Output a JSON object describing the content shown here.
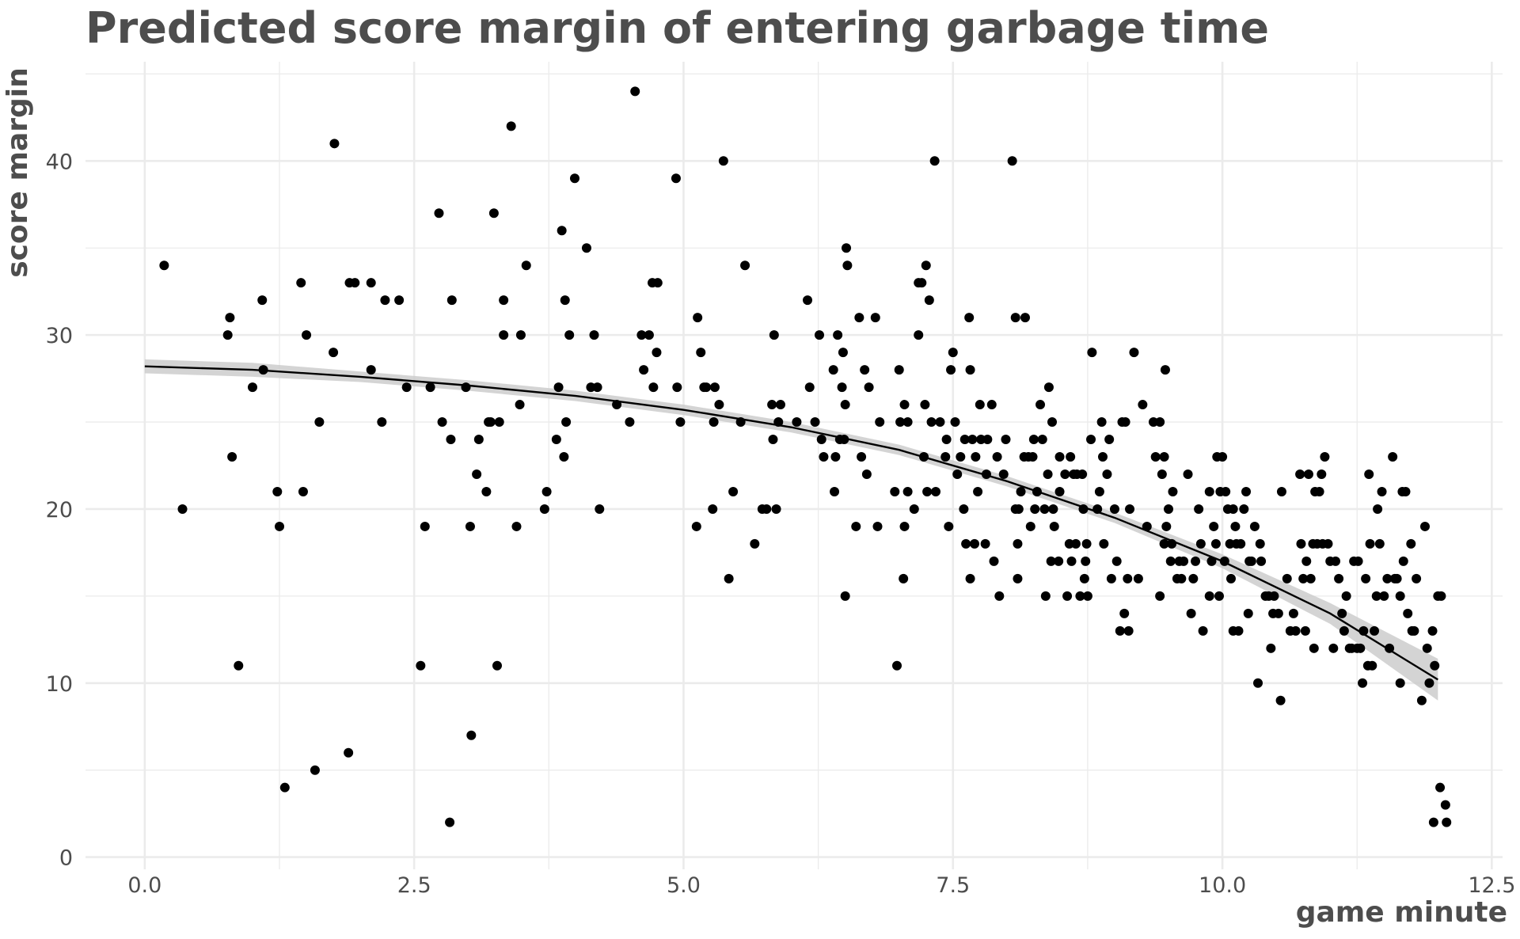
{
  "chart_data": {
    "type": "scatter",
    "title": "Predicted score margin of entering garbage time",
    "xlabel": "game minute",
    "ylabel": "score margin",
    "xlim": [
      -0.55,
      12.6
    ],
    "ylim": [
      -0.7,
      45.7
    ],
    "xticks": [
      0,
      2.5,
      5,
      7.5,
      10,
      12.5
    ],
    "xtick_labels": [
      "0.0",
      "2.5",
      "5.0",
      "7.5",
      "10.0",
      "12.5"
    ],
    "yticks": [
      0,
      10,
      20,
      30,
      40
    ],
    "ytick_labels": [
      "0",
      "10",
      "20",
      "30",
      "40"
    ],
    "grid": true,
    "legend": "none",
    "colors": {
      "points": "#000000",
      "fit_line": "#000000",
      "ribbon": "#cccccc",
      "grid": "#ebebeb"
    },
    "points": [
      [
        0.18,
        34
      ],
      [
        0.35,
        20
      ],
      [
        0.77,
        30
      ],
      [
        0.79,
        31
      ],
      [
        0.81,
        23
      ],
      [
        0.87,
        11
      ],
      [
        1.0,
        27
      ],
      [
        1.09,
        32
      ],
      [
        1.1,
        28
      ],
      [
        1.23,
        21
      ],
      [
        1.25,
        19
      ],
      [
        1.3,
        4
      ],
      [
        1.45,
        33
      ],
      [
        1.47,
        21
      ],
      [
        1.5,
        30
      ],
      [
        1.58,
        5
      ],
      [
        1.62,
        25
      ],
      [
        1.75,
        29
      ],
      [
        1.76,
        41
      ],
      [
        1.89,
        6
      ],
      [
        1.9,
        33
      ],
      [
        1.95,
        33
      ],
      [
        2.1,
        33
      ],
      [
        2.1,
        28
      ],
      [
        2.2,
        25
      ],
      [
        2.23,
        32
      ],
      [
        2.36,
        32
      ],
      [
        2.43,
        27
      ],
      [
        2.56,
        11
      ],
      [
        2.6,
        19
      ],
      [
        2.65,
        27
      ],
      [
        2.73,
        37
      ],
      [
        2.76,
        25
      ],
      [
        2.83,
        2
      ],
      [
        2.84,
        24
      ],
      [
        2.85,
        32
      ],
      [
        2.98,
        27
      ],
      [
        3.02,
        19
      ],
      [
        3.03,
        7
      ],
      [
        3.08,
        22
      ],
      [
        3.1,
        24
      ],
      [
        3.17,
        21
      ],
      [
        3.19,
        25
      ],
      [
        3.21,
        25
      ],
      [
        3.24,
        37
      ],
      [
        3.27,
        11
      ],
      [
        3.29,
        25
      ],
      [
        3.33,
        30
      ],
      [
        3.33,
        32
      ],
      [
        3.4,
        42
      ],
      [
        3.45,
        19
      ],
      [
        3.48,
        26
      ],
      [
        3.49,
        30
      ],
      [
        3.54,
        34
      ],
      [
        3.71,
        20
      ],
      [
        3.73,
        21
      ],
      [
        3.82,
        24
      ],
      [
        3.84,
        27
      ],
      [
        3.87,
        36
      ],
      [
        3.89,
        23
      ],
      [
        3.9,
        32
      ],
      [
        3.91,
        25
      ],
      [
        3.94,
        30
      ],
      [
        3.99,
        39
      ],
      [
        4.1,
        35
      ],
      [
        4.14,
        27
      ],
      [
        4.17,
        30
      ],
      [
        4.2,
        27
      ],
      [
        4.22,
        20
      ],
      [
        4.38,
        26
      ],
      [
        4.5,
        25
      ],
      [
        4.55,
        44
      ],
      [
        4.61,
        30
      ],
      [
        4.63,
        28
      ],
      [
        4.68,
        30
      ],
      [
        4.71,
        33
      ],
      [
        4.72,
        27
      ],
      [
        4.75,
        29
      ],
      [
        4.76,
        33
      ],
      [
        4.93,
        39
      ],
      [
        4.94,
        27
      ],
      [
        4.97,
        25
      ],
      [
        5.12,
        19
      ],
      [
        5.13,
        31
      ],
      [
        5.16,
        29
      ],
      [
        5.19,
        27
      ],
      [
        5.21,
        27
      ],
      [
        5.27,
        20
      ],
      [
        5.28,
        25
      ],
      [
        5.29,
        27
      ],
      [
        5.33,
        26
      ],
      [
        5.37,
        40
      ],
      [
        5.42,
        16
      ],
      [
        5.46,
        21
      ],
      [
        5.53,
        25
      ],
      [
        5.57,
        34
      ],
      [
        5.66,
        18
      ],
      [
        5.73,
        20
      ],
      [
        5.77,
        20
      ],
      [
        5.82,
        26
      ],
      [
        5.83,
        24
      ],
      [
        5.84,
        30
      ],
      [
        5.86,
        20
      ],
      [
        5.88,
        25
      ],
      [
        5.9,
        26
      ],
      [
        6.05,
        25
      ],
      [
        6.15,
        32
      ],
      [
        6.17,
        27
      ],
      [
        6.22,
        25
      ],
      [
        6.26,
        30
      ],
      [
        6.28,
        24
      ],
      [
        6.3,
        23
      ],
      [
        6.39,
        28
      ],
      [
        6.4,
        21
      ],
      [
        6.41,
        23
      ],
      [
        6.43,
        30
      ],
      [
        6.45,
        24
      ],
      [
        6.47,
        27
      ],
      [
        6.48,
        29
      ],
      [
        6.5,
        15
      ],
      [
        6.49,
        24
      ],
      [
        6.5,
        26
      ],
      [
        6.51,
        35
      ],
      [
        6.52,
        34
      ],
      [
        6.6,
        19
      ],
      [
        6.63,
        31
      ],
      [
        6.65,
        23
      ],
      [
        6.68,
        28
      ],
      [
        6.7,
        22
      ],
      [
        6.72,
        27
      ],
      [
        6.78,
        31
      ],
      [
        6.8,
        19
      ],
      [
        6.82,
        25
      ],
      [
        6.96,
        21
      ],
      [
        6.98,
        11
      ],
      [
        7.0,
        28
      ],
      [
        7.01,
        25
      ],
      [
        7.04,
        16
      ],
      [
        7.05,
        19
      ],
      [
        7.05,
        26
      ],
      [
        7.08,
        25
      ],
      [
        7.08,
        21
      ],
      [
        7.14,
        20
      ],
      [
        7.18,
        30
      ],
      [
        7.18,
        33
      ],
      [
        7.21,
        33
      ],
      [
        7.23,
        23
      ],
      [
        7.24,
        26
      ],
      [
        7.25,
        34
      ],
      [
        7.26,
        21
      ],
      [
        7.28,
        32
      ],
      [
        7.3,
        25
      ],
      [
        7.33,
        40
      ],
      [
        7.34,
        21
      ],
      [
        7.38,
        25
      ],
      [
        7.43,
        23
      ],
      [
        7.44,
        24
      ],
      [
        7.46,
        19
      ],
      [
        7.48,
        28
      ],
      [
        7.5,
        29
      ],
      [
        7.52,
        25
      ],
      [
        7.54,
        22
      ],
      [
        7.57,
        23
      ],
      [
        7.6,
        20
      ],
      [
        7.61,
        24
      ],
      [
        7.62,
        18
      ],
      [
        7.65,
        31
      ],
      [
        7.66,
        28
      ],
      [
        7.66,
        16
      ],
      [
        7.68,
        24
      ],
      [
        7.7,
        18
      ],
      [
        7.71,
        23
      ],
      [
        7.73,
        21
      ],
      [
        7.75,
        26
      ],
      [
        7.76,
        24
      ],
      [
        7.8,
        18
      ],
      [
        7.81,
        22
      ],
      [
        7.82,
        24
      ],
      [
        7.86,
        26
      ],
      [
        7.88,
        17
      ],
      [
        7.91,
        23
      ],
      [
        7.93,
        15
      ],
      [
        7.97,
        22
      ],
      [
        7.99,
        24
      ],
      [
        8.05,
        40
      ],
      [
        8.08,
        31
      ],
      [
        8.08,
        20
      ],
      [
        8.1,
        18
      ],
      [
        8.1,
        16
      ],
      [
        8.11,
        20
      ],
      [
        8.13,
        21
      ],
      [
        8.16,
        23
      ],
      [
        8.17,
        31
      ],
      [
        8.2,
        23
      ],
      [
        8.22,
        19
      ],
      [
        8.24,
        23
      ],
      [
        8.25,
        24
      ],
      [
        8.26,
        20
      ],
      [
        8.28,
        21
      ],
      [
        8.31,
        26
      ],
      [
        8.33,
        24
      ],
      [
        8.35,
        20
      ],
      [
        8.36,
        15
      ],
      [
        8.38,
        22
      ],
      [
        8.39,
        27
      ],
      [
        8.41,
        17
      ],
      [
        8.42,
        25
      ],
      [
        8.43,
        20
      ],
      [
        8.44,
        19
      ],
      [
        8.48,
        17
      ],
      [
        8.49,
        23
      ],
      [
        8.49,
        21
      ],
      [
        8.54,
        22
      ],
      [
        8.56,
        15
      ],
      [
        8.58,
        18
      ],
      [
        8.59,
        23
      ],
      [
        8.6,
        17
      ],
      [
        8.62,
        22
      ],
      [
        8.64,
        18
      ],
      [
        8.65,
        22
      ],
      [
        8.68,
        15
      ],
      [
        8.7,
        22
      ],
      [
        8.71,
        20
      ],
      [
        8.72,
        16
      ],
      [
        8.73,
        17
      ],
      [
        8.74,
        18
      ],
      [
        8.75,
        15
      ],
      [
        8.78,
        24
      ],
      [
        8.79,
        29
      ],
      [
        8.84,
        20
      ],
      [
        8.86,
        21
      ],
      [
        8.88,
        25
      ],
      [
        8.89,
        23
      ],
      [
        8.9,
        18
      ],
      [
        8.93,
        22
      ],
      [
        8.95,
        24
      ],
      [
        8.97,
        16
      ],
      [
        9.0,
        20
      ],
      [
        9.02,
        17
      ],
      [
        9.05,
        13
      ],
      [
        9.07,
        25
      ],
      [
        9.09,
        14
      ],
      [
        9.1,
        25
      ],
      [
        9.12,
        16
      ],
      [
        9.13,
        13
      ],
      [
        9.14,
        20
      ],
      [
        9.18,
        29
      ],
      [
        9.22,
        16
      ],
      [
        9.26,
        26
      ],
      [
        9.3,
        19
      ],
      [
        9.36,
        25
      ],
      [
        9.38,
        23
      ],
      [
        9.42,
        25
      ],
      [
        9.42,
        15
      ],
      [
        9.44,
        22
      ],
      [
        9.46,
        18
      ],
      [
        9.46,
        23
      ],
      [
        9.47,
        28
      ],
      [
        9.48,
        19
      ],
      [
        9.5,
        20
      ],
      [
        9.52,
        17
      ],
      [
        9.53,
        18
      ],
      [
        9.54,
        21
      ],
      [
        9.58,
        16
      ],
      [
        9.6,
        17
      ],
      [
        9.62,
        16
      ],
      [
        9.64,
        17
      ],
      [
        9.68,
        22
      ],
      [
        9.71,
        14
      ],
      [
        9.73,
        16
      ],
      [
        9.75,
        17
      ],
      [
        9.78,
        20
      ],
      [
        9.8,
        18
      ],
      [
        9.82,
        13
      ],
      [
        9.88,
        21
      ],
      [
        9.88,
        15
      ],
      [
        9.9,
        17
      ],
      [
        9.92,
        19
      ],
      [
        9.94,
        18
      ],
      [
        9.95,
        23
      ],
      [
        9.97,
        15
      ],
      [
        9.98,
        21
      ],
      [
        10.0,
        23
      ],
      [
        10.02,
        17
      ],
      [
        10.03,
        21
      ],
      [
        10.05,
        20
      ],
      [
        10.07,
        18
      ],
      [
        10.08,
        16
      ],
      [
        10.1,
        13
      ],
      [
        10.1,
        20
      ],
      [
        10.12,
        19
      ],
      [
        10.13,
        18
      ],
      [
        10.15,
        13
      ],
      [
        10.17,
        18
      ],
      [
        10.2,
        20
      ],
      [
        10.22,
        21
      ],
      [
        10.24,
        14
      ],
      [
        10.25,
        17
      ],
      [
        10.27,
        17
      ],
      [
        10.3,
        19
      ],
      [
        10.33,
        10
      ],
      [
        10.35,
        18
      ],
      [
        10.36,
        17
      ],
      [
        10.4,
        15
      ],
      [
        10.43,
        15
      ],
      [
        10.45,
        12
      ],
      [
        10.47,
        14
      ],
      [
        10.48,
        15
      ],
      [
        10.52,
        14
      ],
      [
        10.54,
        9
      ],
      [
        10.55,
        21
      ],
      [
        10.6,
        16
      ],
      [
        10.63,
        13
      ],
      [
        10.66,
        14
      ],
      [
        10.68,
        13
      ],
      [
        10.72,
        22
      ],
      [
        10.73,
        18
      ],
      [
        10.75,
        16
      ],
      [
        10.77,
        13
      ],
      [
        10.78,
        17
      ],
      [
        10.8,
        22
      ],
      [
        10.82,
        16
      ],
      [
        10.84,
        18
      ],
      [
        10.85,
        12
      ],
      [
        10.86,
        21
      ],
      [
        10.88,
        18
      ],
      [
        10.9,
        21
      ],
      [
        10.92,
        22
      ],
      [
        10.93,
        18
      ],
      [
        10.95,
        23
      ],
      [
        10.98,
        18
      ],
      [
        11.0,
        17
      ],
      [
        11.03,
        12
      ],
      [
        11.05,
        17
      ],
      [
        11.08,
        16
      ],
      [
        11.11,
        14
      ],
      [
        11.13,
        13
      ],
      [
        11.15,
        15
      ],
      [
        11.18,
        12
      ],
      [
        11.2,
        12
      ],
      [
        11.22,
        17
      ],
      [
        11.25,
        12
      ],
      [
        11.26,
        17
      ],
      [
        11.28,
        12
      ],
      [
        11.3,
        10
      ],
      [
        11.31,
        13
      ],
      [
        11.33,
        16
      ],
      [
        11.35,
        11
      ],
      [
        11.36,
        22
      ],
      [
        11.37,
        18
      ],
      [
        11.39,
        11
      ],
      [
        11.41,
        13
      ],
      [
        11.43,
        15
      ],
      [
        11.44,
        20
      ],
      [
        11.46,
        18
      ],
      [
        11.48,
        21
      ],
      [
        11.5,
        15
      ],
      [
        11.53,
        16
      ],
      [
        11.55,
        12
      ],
      [
        11.58,
        23
      ],
      [
        11.6,
        16
      ],
      [
        11.62,
        16
      ],
      [
        11.65,
        10
      ],
      [
        11.65,
        15
      ],
      [
        11.67,
        21
      ],
      [
        11.68,
        17
      ],
      [
        11.7,
        21
      ],
      [
        11.72,
        14
      ],
      [
        11.75,
        18
      ],
      [
        11.76,
        13
      ],
      [
        11.78,
        13
      ],
      [
        11.8,
        16
      ],
      [
        11.85,
        9
      ],
      [
        11.88,
        19
      ],
      [
        11.9,
        12
      ],
      [
        11.92,
        10
      ],
      [
        11.95,
        13
      ],
      [
        11.96,
        2
      ],
      [
        11.97,
        11
      ],
      [
        12.0,
        15
      ],
      [
        12.02,
        4
      ],
      [
        12.03,
        15
      ],
      [
        12.07,
        3
      ],
      [
        12.08,
        2
      ]
    ],
    "fit": {
      "x": [
        0,
        1,
        2,
        3,
        4,
        5,
        6,
        7,
        8,
        9,
        10,
        11,
        12
      ],
      "y": [
        28.2,
        28.0,
        27.6,
        27.1,
        26.5,
        25.7,
        24.7,
        23.4,
        21.6,
        19.5,
        17.0,
        14.0,
        10.2
      ],
      "lower": [
        27.8,
        27.6,
        27.3,
        26.8,
        26.2,
        25.4,
        24.4,
        23.1,
        21.3,
        19.2,
        16.6,
        13.4,
        9.0
      ],
      "upper": [
        28.6,
        28.4,
        27.9,
        27.4,
        26.8,
        26.0,
        25.0,
        23.7,
        21.9,
        19.8,
        17.4,
        14.6,
        11.4
      ]
    }
  }
}
